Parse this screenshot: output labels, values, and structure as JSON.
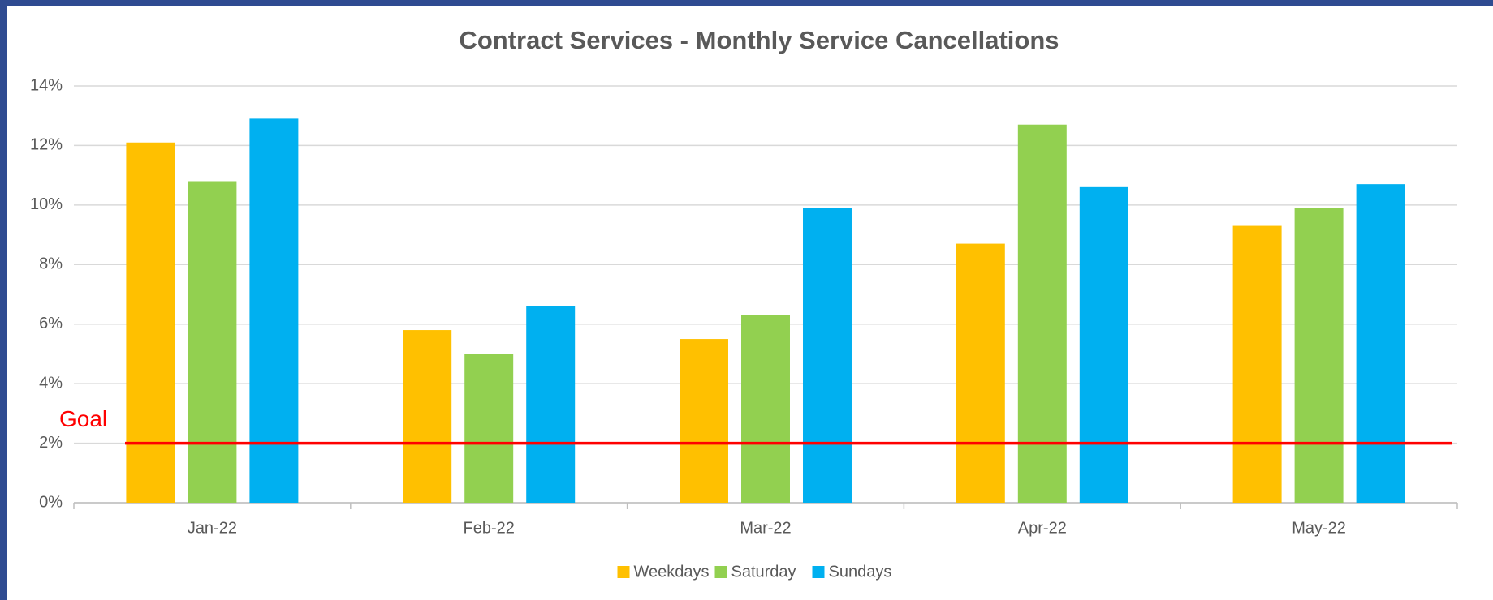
{
  "chart_data": {
    "type": "bar",
    "title": "Contract Services - Monthly Service Cancellations",
    "categories": [
      "Jan-22",
      "Feb-22",
      "Mar-22",
      "Apr-22",
      "May-22"
    ],
    "series": [
      {
        "name": "Weekdays",
        "color": "#ffc000",
        "values": [
          12.1,
          5.8,
          5.5,
          8.7,
          9.3
        ]
      },
      {
        "name": "Saturday",
        "color": "#92d050",
        "values": [
          10.8,
          5.0,
          6.3,
          12.7,
          9.9
        ]
      },
      {
        "name": "Sundays",
        "color": "#00b0f0",
        "values": [
          12.9,
          6.6,
          9.9,
          10.6,
          10.7
        ]
      }
    ],
    "ylim": [
      0,
      14
    ],
    "yticks": [
      {
        "value": 0,
        "label": "0%"
      },
      {
        "value": 2,
        "label": "2%"
      },
      {
        "value": 4,
        "label": "4%"
      },
      {
        "value": 6,
        "label": "6%"
      },
      {
        "value": 8,
        "label": "8%"
      },
      {
        "value": 10,
        "label": "10%"
      },
      {
        "value": 12,
        "label": "12%"
      },
      {
        "value": 14,
        "label": "14%"
      }
    ],
    "grid": true,
    "legend": "bottom",
    "goal": {
      "label": "Goal",
      "value": 2,
      "color": "#ff0000"
    }
  }
}
